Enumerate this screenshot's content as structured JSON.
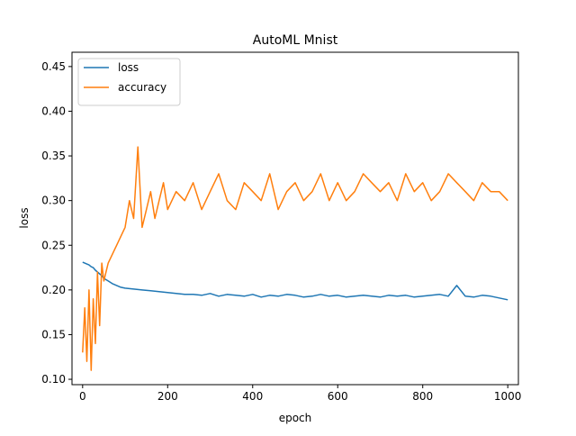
{
  "chart_data": {
    "type": "line",
    "title": "AutoML Mnist",
    "xlabel": "epoch",
    "ylabel": "loss",
    "xlim": [
      -25,
      1025
    ],
    "ylim": [
      0.094,
      0.466
    ],
    "xticks": [
      0,
      200,
      400,
      600,
      800,
      1000
    ],
    "yticks": [
      0.1,
      0.15,
      0.2,
      0.25,
      0.3,
      0.35,
      0.4,
      0.45
    ],
    "grid": false,
    "legend_position": "upper-left",
    "series": [
      {
        "name": "loss",
        "color": "#1f77b4",
        "x": [
          0,
          5,
          10,
          15,
          20,
          25,
          30,
          35,
          40,
          45,
          50,
          60,
          70,
          80,
          90,
          100,
          120,
          140,
          160,
          180,
          200,
          220,
          240,
          260,
          280,
          300,
          320,
          340,
          360,
          380,
          400,
          420,
          440,
          460,
          480,
          500,
          520,
          540,
          560,
          580,
          600,
          620,
          640,
          660,
          680,
          700,
          720,
          740,
          760,
          780,
          800,
          820,
          840,
          860,
          880,
          900,
          920,
          940,
          960,
          980,
          1000
        ],
        "y": [
          0.231,
          0.23,
          0.229,
          0.228,
          0.226,
          0.225,
          0.222,
          0.22,
          0.218,
          0.216,
          0.213,
          0.21,
          0.207,
          0.205,
          0.203,
          0.202,
          0.201,
          0.2,
          0.199,
          0.198,
          0.197,
          0.196,
          0.195,
          0.195,
          0.194,
          0.196,
          0.193,
          0.195,
          0.194,
          0.193,
          0.195,
          0.192,
          0.194,
          0.193,
          0.195,
          0.194,
          0.192,
          0.193,
          0.195,
          0.193,
          0.194,
          0.192,
          0.193,
          0.194,
          0.193,
          0.192,
          0.194,
          0.193,
          0.194,
          0.192,
          0.193,
          0.194,
          0.195,
          0.193,
          0.205,
          0.193,
          0.192,
          0.194,
          0.193,
          0.191,
          0.189
        ]
      },
      {
        "name": "accuracy",
        "color": "#ff7f0e",
        "x": [
          0,
          5,
          10,
          15,
          20,
          25,
          30,
          35,
          40,
          45,
          50,
          60,
          70,
          80,
          90,
          100,
          110,
          120,
          130,
          140,
          150,
          160,
          170,
          180,
          190,
          200,
          220,
          240,
          260,
          280,
          300,
          320,
          340,
          360,
          380,
          400,
          420,
          440,
          460,
          480,
          500,
          520,
          540,
          560,
          580,
          600,
          620,
          640,
          660,
          680,
          700,
          720,
          740,
          760,
          780,
          800,
          820,
          840,
          860,
          880,
          900,
          920,
          940,
          960,
          980,
          1000
        ],
        "y": [
          0.13,
          0.18,
          0.12,
          0.2,
          0.11,
          0.19,
          0.14,
          0.22,
          0.16,
          0.23,
          0.21,
          0.23,
          0.24,
          0.25,
          0.26,
          0.27,
          0.3,
          0.28,
          0.36,
          0.27,
          0.29,
          0.31,
          0.28,
          0.3,
          0.32,
          0.29,
          0.31,
          0.3,
          0.32,
          0.29,
          0.31,
          0.33,
          0.3,
          0.29,
          0.32,
          0.31,
          0.3,
          0.33,
          0.29,
          0.31,
          0.32,
          0.3,
          0.31,
          0.33,
          0.3,
          0.32,
          0.3,
          0.31,
          0.33,
          0.32,
          0.31,
          0.32,
          0.3,
          0.33,
          0.31,
          0.32,
          0.3,
          0.31,
          0.33,
          0.32,
          0.31,
          0.3,
          0.32,
          0.31,
          0.31,
          0.3
        ]
      }
    ]
  }
}
